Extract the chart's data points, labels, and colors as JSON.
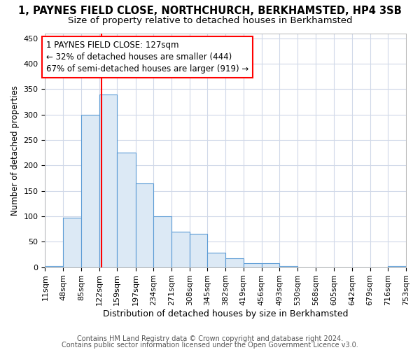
{
  "title1": "1, PAYNES FIELD CLOSE, NORTHCHURCH, BERKHAMSTED, HP4 3SB",
  "title2": "Size of property relative to detached houses in Berkhamsted",
  "xlabel": "Distribution of detached houses by size in Berkhamsted",
  "ylabel": "Number of detached properties",
  "bin_edges": [
    11,
    48,
    85,
    122,
    159,
    197,
    234,
    271,
    308,
    345,
    382,
    419,
    456,
    493,
    530,
    568,
    605,
    642,
    679,
    716,
    753
  ],
  "bar_heights": [
    2,
    97,
    300,
    340,
    225,
    165,
    100,
    70,
    65,
    28,
    18,
    8,
    8,
    2,
    0,
    0,
    0,
    0,
    0,
    2
  ],
  "bar_color": "#dce9f5",
  "bar_edge_color": "#5b9bd5",
  "property_size": 127,
  "annotation_line1": "1 PAYNES FIELD CLOSE: 127sqm",
  "annotation_line2": "← 32% of detached houses are smaller (444)",
  "annotation_line3": "67% of semi-detached houses are larger (919) →",
  "annotation_box_color": "white",
  "annotation_box_edge_color": "red",
  "vline_color": "red",
  "vline_x": 127,
  "footer1": "Contains HM Land Registry data © Crown copyright and database right 2024.",
  "footer2": "Contains public sector information licensed under the Open Government Licence v3.0.",
  "ylim": [
    0,
    460
  ],
  "xlim": [
    11,
    753
  ],
  "title1_fontsize": 10.5,
  "title2_fontsize": 9.5,
  "xlabel_fontsize": 9,
  "ylabel_fontsize": 8.5,
  "tick_fontsize": 8,
  "annotation_fontsize": 8.5,
  "footer_fontsize": 7,
  "background_color": "#ffffff",
  "plot_bg_color": "#ffffff",
  "grid_color": "#d0d8e8"
}
